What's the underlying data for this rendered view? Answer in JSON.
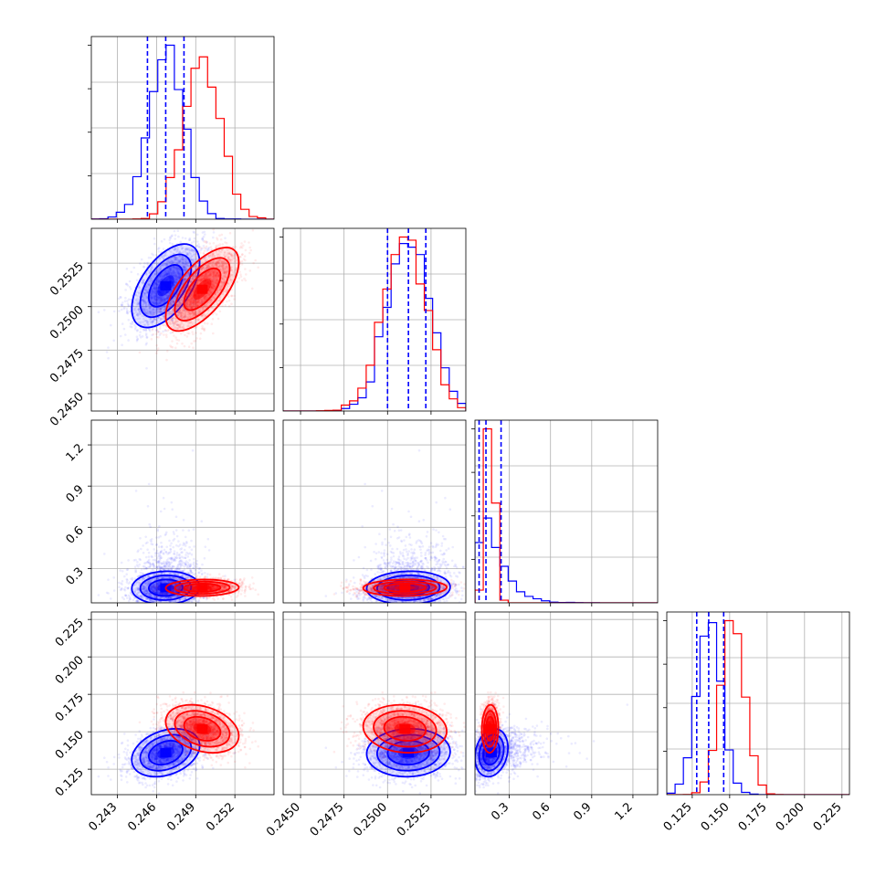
{
  "chart_data": {
    "type": "scatter",
    "kind": "corner-plot",
    "title": "",
    "params": [
      {
        "xlim": [
          0.241,
          0.255
        ],
        "ticks": [
          0.243,
          0.246,
          0.249,
          0.252
        ],
        "tick_labels": [
          "0.243",
          "0.246",
          "0.249",
          "0.252"
        ]
      },
      {
        "xlim": [
          0.244,
          0.2545
        ],
        "ticks": [
          0.245,
          0.2475,
          0.25,
          0.2525
        ],
        "tick_labels": [
          "0.2450",
          "0.2475",
          "0.2500",
          "0.2525"
        ]
      },
      {
        "xlim": [
          0.05,
          1.38
        ],
        "ticks": [
          0.3,
          0.6,
          0.9,
          1.2
        ],
        "tick_labels": [
          "0.3",
          "0.6",
          "0.9",
          "1.2"
        ]
      },
      {
        "xlim": [
          0.108,
          0.23
        ],
        "ticks": [
          0.125,
          0.15,
          0.175,
          0.2,
          0.225
        ],
        "tick_labels": [
          "0.125",
          "0.150",
          "0.175",
          "0.200",
          "0.225"
        ]
      }
    ],
    "series": [
      {
        "color": "#0000ff",
        "mean": [
          0.2467,
          0.2512,
          0.17,
          0.136
        ],
        "sd": [
          0.0013,
          0.0012,
          0.12,
          0.008
        ],
        "corr": [
          [
            1,
            0.55,
            0.05,
            0.3
          ],
          [
            0.55,
            1,
            0.05,
            0.05
          ],
          [
            0.05,
            0.05,
            1,
            0.2
          ],
          [
            0.3,
            0.05,
            0.2,
            1
          ]
        ],
        "quantiles": [
          [
            0.2453,
            0.2467,
            0.2481
          ],
          [
            0.25,
            0.2512,
            0.2522
          ],
          [
            0.08,
            0.13,
            0.24
          ],
          [
            0.128,
            0.136,
            0.146
          ]
        ]
      },
      {
        "color": "#ff0000",
        "mean": [
          0.2495,
          0.251,
          0.16,
          0.152
        ],
        "sd": [
          0.0014,
          0.0012,
          0.03,
          0.008
        ],
        "corr": [
          [
            1,
            0.65,
            0.05,
            -0.3
          ],
          [
            0.65,
            1,
            0.05,
            -0.1
          ],
          [
            0.05,
            0.05,
            1,
            0.05
          ],
          [
            -0.3,
            -0.1,
            0.05,
            1
          ]
        ]
      }
    ],
    "grid": true,
    "legend": "none"
  }
}
